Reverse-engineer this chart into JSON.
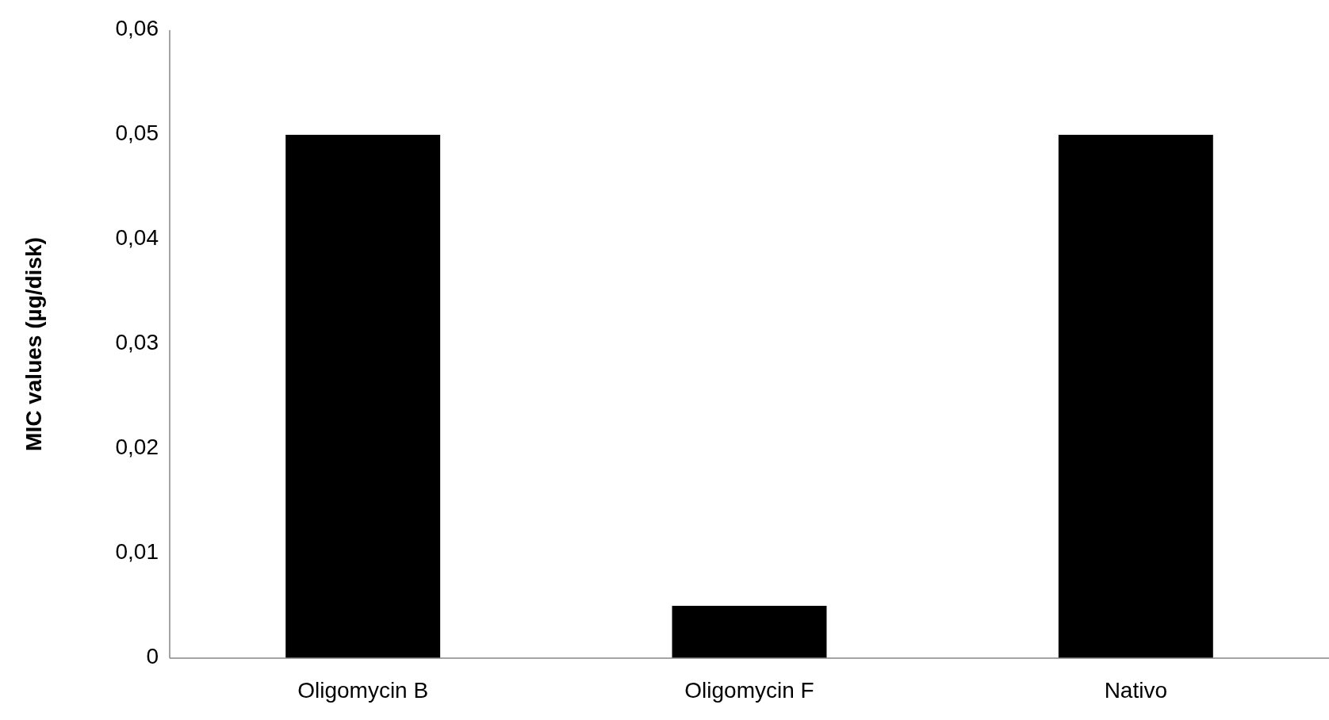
{
  "chart_data": {
    "type": "bar",
    "ylabel": "MIC values (µg/disk)",
    "categories": [
      "Oligomycin B",
      "Oligomycin F",
      "Nativo"
    ],
    "values": [
      0.05,
      0.005,
      0.05
    ],
    "color": "#000000",
    "ylim": [
      0,
      0.06
    ],
    "yticks": [
      0,
      {
        "value": 0.01,
        "label": "0,01"
      },
      {
        "value": 0.02,
        "label": "0,02"
      },
      {
        "value": 0.03,
        "label": "0,03"
      },
      {
        "value": 0.04,
        "label": "0,04"
      },
      {
        "value": 0.05,
        "label": "0,05"
      },
      {
        "value": 0.06,
        "label": "0,06"
      }
    ],
    "grid": false
  }
}
